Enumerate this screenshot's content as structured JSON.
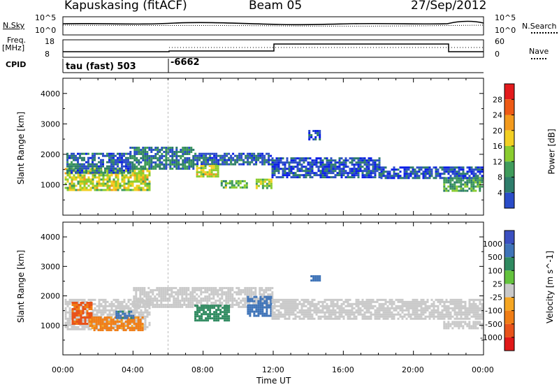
{
  "header": {
    "station": "Kapuskasing (fitACF)",
    "beam": "Beam 05",
    "date": "27/Sep/2012"
  },
  "noise_panel": {
    "left_label": "N.Sky",
    "left_ticks": [
      "10^5",
      "10^0"
    ],
    "right_ticks": [
      "10^5",
      "10^0"
    ],
    "right_label": "N.Search"
  },
  "freq_panel": {
    "left_label_1": "Freq.",
    "left_label_2": "[MHz]",
    "left_ticks": [
      "18",
      "8"
    ],
    "right_ticks": [
      "60",
      "0"
    ],
    "right_label": "Nave"
  },
  "cpid_panel": {
    "label": "CPID",
    "mode_1": "tau (fast) 503",
    "mode_2": "-6662"
  },
  "x_ticks": [
    "00:00",
    "04:00",
    "08:00",
    "12:00",
    "16:00",
    "20:00",
    "00:00"
  ],
  "x_label": "Time UT",
  "colors": {
    "power": [
      "#0a1ee6",
      "#2a4cc8",
      "#2e7d6b",
      "#3f9b5b",
      "#8acc2f",
      "#f2cf23",
      "#f39a1d",
      "#ee5a15",
      "#e31a1c"
    ],
    "velocity": [
      "#3b4fc0",
      "#3f74b8",
      "#2f8a60",
      "#63c23d",
      "#c9c9c9",
      "#f5a623",
      "#f07d15",
      "#e8531a",
      "#e01818"
    ],
    "ground_scatter": "#c9c9c9"
  },
  "chart_data": [
    {
      "type": "heatmap",
      "name_on_axis": "Power [dB]",
      "ylabel": "Slant Range [km]",
      "y_ticks": [
        "1000",
        "2000",
        "3000",
        "4000"
      ],
      "ylim": [
        0,
        4500
      ],
      "xlim": [
        0,
        24
      ],
      "colorbar_ticks": [
        "4",
        "8",
        "12",
        "16",
        "20",
        "24",
        "28"
      ],
      "colorbar_range": [
        0,
        32
      ],
      "regions": [
        {
          "t0": 0.1,
          "t1": 5.0,
          "r_lo": 850,
          "r_hi": 1550,
          "value": 20
        },
        {
          "t0": 0.2,
          "t1": 3.8,
          "r_lo": 1400,
          "r_hi": 2050,
          "value": 8
        },
        {
          "t0": 3.8,
          "t1": 7.5,
          "r_lo": 1500,
          "r_hi": 2250,
          "value": 10
        },
        {
          "t0": 7.5,
          "t1": 11.9,
          "r_lo": 1650,
          "r_hi": 2050,
          "value": 8
        },
        {
          "t0": 7.6,
          "t1": 8.8,
          "r_lo": 1250,
          "r_hi": 1650,
          "value": 20
        },
        {
          "t0": 9.0,
          "t1": 10.5,
          "r_lo": 900,
          "r_hi": 1150,
          "value": 16
        },
        {
          "t0": 11.0,
          "t1": 11.9,
          "r_lo": 900,
          "r_hi": 1200,
          "value": 18
        },
        {
          "t0": 11.9,
          "t1": 18.0,
          "r_lo": 1250,
          "r_hi": 1900,
          "value": 6
        },
        {
          "t0": 18.0,
          "t1": 23.9,
          "r_lo": 1250,
          "r_hi": 1600,
          "value": 6
        },
        {
          "t0": 21.7,
          "t1": 23.9,
          "r_lo": 800,
          "r_hi": 1250,
          "value": 14
        },
        {
          "t0": 14.0,
          "t1": 14.7,
          "r_lo": 2500,
          "r_hi": 2800,
          "value": 6
        }
      ]
    },
    {
      "type": "heatmap",
      "name_on_axis": "Velocity [m s^-1]",
      "ylabel": "Slant Range [km]",
      "y_ticks": [
        "1000",
        "2000",
        "3000",
        "4000"
      ],
      "ylim": [
        0,
        4500
      ],
      "xlim": [
        0,
        24
      ],
      "colorbar_ticks": [
        "1000",
        "500",
        "100",
        "25",
        "-25",
        "-100",
        "-500",
        "-1000"
      ],
      "regions": [
        {
          "t0": 0.1,
          "t1": 5.0,
          "r_lo": 900,
          "r_hi": 1900,
          "value": "ground",
          "note": "grey ground scatter"
        },
        {
          "t0": 0.5,
          "t1": 1.6,
          "r_lo": 1050,
          "r_hi": 1800,
          "value": -600
        },
        {
          "t0": 1.5,
          "t1": 4.5,
          "r_lo": 850,
          "r_hi": 1300,
          "value": -150
        },
        {
          "t0": 3.0,
          "t1": 4.0,
          "r_lo": 1250,
          "r_hi": 1500,
          "value": 120
        },
        {
          "t0": 4.0,
          "t1": 11.9,
          "r_lo": 1600,
          "r_hi": 2300,
          "value": "ground"
        },
        {
          "t0": 7.5,
          "t1": 9.5,
          "r_lo": 1200,
          "r_hi": 1700,
          "value": 60
        },
        {
          "t0": 10.5,
          "t1": 11.9,
          "r_lo": 1300,
          "r_hi": 2000,
          "value": 300
        },
        {
          "t0": 11.9,
          "t1": 23.9,
          "r_lo": 1250,
          "r_hi": 1900,
          "value": "ground"
        },
        {
          "t0": 21.7,
          "t1": 23.9,
          "r_lo": 900,
          "r_hi": 1150,
          "value": "ground"
        },
        {
          "t0": 14.0,
          "t1": 14.7,
          "r_lo": 2500,
          "r_hi": 2700,
          "value": 150
        }
      ]
    }
  ]
}
